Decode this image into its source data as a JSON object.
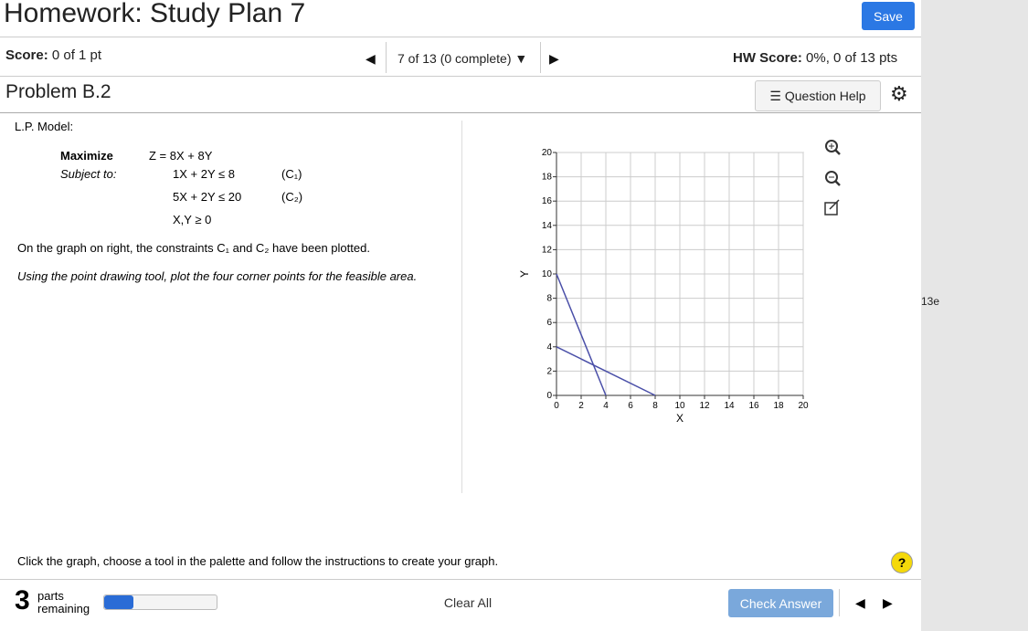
{
  "header": {
    "title": "Homework: Study Plan 7",
    "save": "Save"
  },
  "status": {
    "score_label": "Score:",
    "score_value": "0 of 1 pt",
    "nav": "7 of 13 (0 complete)",
    "hw_label": "HW Score:",
    "hw_value": "0%, 0 of 13 pts"
  },
  "problem": {
    "title": "Problem B.2",
    "help": "Question Help"
  },
  "model": {
    "heading": "L.P. Model:",
    "maximize": "Maximize",
    "objective": "Z = 8X + 8Y",
    "subject_to": "Subject to:",
    "constraints": [
      {
        "expr": "1X + 2Y ≤ 8",
        "label": "(C₁)"
      },
      {
        "expr": "5X + 2Y ≤ 20",
        "label": "(C₂)"
      },
      {
        "expr": "X,Y ≥ 0"
      }
    ]
  },
  "instructions": [
    "On the graph on right, the constraints C₁ and C₂ have been plotted.",
    "Using the point drawing tool, plot the four corner points for the feasible area."
  ],
  "graph": {
    "x_label": "X",
    "y_label": "Y",
    "xlim": [
      0,
      20
    ],
    "ylim": [
      0,
      20
    ],
    "xticks": [
      0,
      2,
      4,
      6,
      8,
      10,
      12,
      14,
      16,
      18,
      20
    ],
    "yticks": [
      0,
      2,
      4,
      6,
      8,
      10,
      12,
      14,
      16,
      18,
      20
    ],
    "grid": true,
    "lines": [
      {
        "x": [
          0,
          8
        ],
        "y": [
          4,
          0
        ],
        "color": "#4a4fa8"
      },
      {
        "x": [
          0,
          4
        ],
        "y": [
          10,
          0
        ],
        "color": "#4a4fa8"
      }
    ]
  },
  "graph_hint": "Click the graph, choose a tool in the palette and follow the instructions to create your graph.",
  "footer": {
    "parts_count": "3",
    "parts_label": "parts",
    "remaining": "remaining",
    "clear": "Clear All",
    "check": "Check Answer",
    "help_icon": "?"
  },
  "side_label": "13e"
}
